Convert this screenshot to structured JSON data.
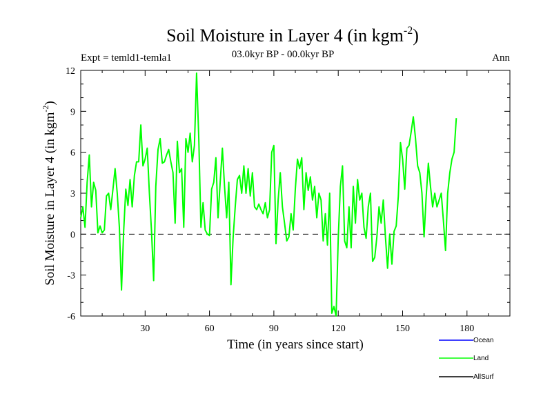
{
  "chart_data": {
    "type": "line",
    "title": "Soil Moisture in Layer 4 (in kgm",
    "title_sup": "-2",
    "title_close": ")",
    "subtitle": "03.0kyr BP - 00.0kyr BP",
    "expt_label": "Expt = temld1-temla1",
    "season_label": "Ann",
    "xlabel": "Time (in years since start)",
    "ylabel": "Soil Moisture in Layer 4 (in kgm",
    "ylabel_sup": "-2",
    "ylabel_close": ")",
    "xlim": [
      0,
      200
    ],
    "ylim": [
      -6,
      12
    ],
    "x_ticks": [
      30,
      60,
      90,
      120,
      150,
      180
    ],
    "x_tick_labels": [
      "30",
      "60",
      "90",
      "120",
      "150",
      "180"
    ],
    "y_ticks": [
      -6,
      -3,
      0,
      3,
      6,
      9,
      12
    ],
    "y_tick_labels": [
      "-6",
      "-3",
      "0",
      "3",
      "6",
      "9",
      "12"
    ],
    "zero_line": true,
    "grid": false,
    "legend_position": "bottom-right",
    "series": [
      {
        "name": "Ocean",
        "color": "#0000ff",
        "values": []
      },
      {
        "name": "Land",
        "color": "#00ff00",
        "values": [
          [
            0,
            1.2
          ],
          [
            1,
            2.0
          ],
          [
            2,
            0.5
          ],
          [
            3,
            3.8
          ],
          [
            4,
            5.8
          ],
          [
            5,
            2.0
          ],
          [
            6,
            3.8
          ],
          [
            7,
            3.2
          ],
          [
            8,
            0.1
          ],
          [
            9,
            0.6
          ],
          [
            10,
            0.1
          ],
          [
            11,
            0.3
          ],
          [
            12,
            2.8
          ],
          [
            13,
            3.0
          ],
          [
            14,
            1.8
          ],
          [
            15,
            3.3
          ],
          [
            16,
            4.8
          ],
          [
            17,
            3.0
          ],
          [
            18,
            0.5
          ],
          [
            19,
            -4.1
          ],
          [
            20,
            0.2
          ],
          [
            21,
            3.3
          ],
          [
            22,
            2.1
          ],
          [
            23,
            4.0
          ],
          [
            24,
            2.0
          ],
          [
            25,
            4.3
          ],
          [
            26,
            5.3
          ],
          [
            27,
            5.3
          ],
          [
            28,
            8.0
          ],
          [
            29,
            5.0
          ],
          [
            30,
            5.5
          ],
          [
            31,
            6.3
          ],
          [
            32,
            3.0
          ],
          [
            33,
            0.2
          ],
          [
            34,
            -3.4
          ],
          [
            35,
            3.5
          ],
          [
            36,
            6.2
          ],
          [
            37,
            7.0
          ],
          [
            38,
            5.2
          ],
          [
            39,
            5.3
          ],
          [
            40,
            5.8
          ],
          [
            41,
            6.2
          ],
          [
            42,
            5.3
          ],
          [
            43,
            4.5
          ],
          [
            44,
            0.8
          ],
          [
            45,
            6.8
          ],
          [
            46,
            4.5
          ],
          [
            47,
            4.8
          ],
          [
            48,
            0.5
          ],
          [
            49,
            7.0
          ],
          [
            50,
            6.0
          ],
          [
            51,
            7.4
          ],
          [
            52,
            5.3
          ],
          [
            53,
            6.5
          ],
          [
            54,
            11.8
          ],
          [
            55,
            7.0
          ],
          [
            56,
            0.5
          ],
          [
            57,
            2.3
          ],
          [
            58,
            0.3
          ],
          [
            59,
            0.0
          ],
          [
            60,
            -0.1
          ],
          [
            61,
            3.3
          ],
          [
            62,
            3.8
          ],
          [
            63,
            5.6
          ],
          [
            64,
            1.2
          ],
          [
            65,
            3.8
          ],
          [
            66,
            6.3
          ],
          [
            67,
            3.5
          ],
          [
            68,
            1.2
          ],
          [
            69,
            3.8
          ],
          [
            70,
            -3.7
          ],
          [
            71,
            -0.3
          ],
          [
            72,
            2.0
          ],
          [
            73,
            4.0
          ],
          [
            74,
            4.3
          ],
          [
            75,
            3.0
          ],
          [
            76,
            5.0
          ],
          [
            77,
            3.0
          ],
          [
            78,
            4.8
          ],
          [
            79,
            2.8
          ],
          [
            80,
            4.5
          ],
          [
            81,
            2.0
          ],
          [
            82,
            1.8
          ],
          [
            83,
            2.2
          ],
          [
            84,
            1.8
          ],
          [
            85,
            1.5
          ],
          [
            86,
            2.3
          ],
          [
            87,
            1.2
          ],
          [
            88,
            1.8
          ],
          [
            89,
            6.0
          ],
          [
            90,
            6.5
          ],
          [
            91,
            -0.7
          ],
          [
            92,
            2.5
          ],
          [
            93,
            4.5
          ],
          [
            94,
            2.0
          ],
          [
            95,
            0.8
          ],
          [
            96,
            -0.5
          ],
          [
            97,
            -0.2
          ],
          [
            98,
            1.5
          ],
          [
            99,
            0.3
          ],
          [
            100,
            3.3
          ],
          [
            101,
            5.5
          ],
          [
            102,
            4.8
          ],
          [
            103,
            5.6
          ],
          [
            104,
            1.8
          ],
          [
            105,
            4.5
          ],
          [
            106,
            3.2
          ],
          [
            107,
            4.2
          ],
          [
            108,
            2.5
          ],
          [
            109,
            3.5
          ],
          [
            110,
            1.2
          ],
          [
            111,
            3.0
          ],
          [
            112,
            2.5
          ],
          [
            113,
            -0.5
          ],
          [
            114,
            1.5
          ],
          [
            115,
            -0.8
          ],
          [
            116,
            3.0
          ],
          [
            117,
            -5.8
          ],
          [
            118,
            -5.3
          ],
          [
            119,
            -6.0
          ],
          [
            120,
            -0.3
          ],
          [
            121,
            3.5
          ],
          [
            122,
            5.0
          ],
          [
            123,
            -0.5
          ],
          [
            124,
            -1.0
          ],
          [
            125,
            2.0
          ],
          [
            126,
            -1.0
          ],
          [
            127,
            3.5
          ],
          [
            128,
            0.8
          ],
          [
            129,
            4.0
          ],
          [
            130,
            2.5
          ],
          [
            131,
            3.0
          ],
          [
            132,
            0.5
          ],
          [
            133,
            -0.3
          ],
          [
            134,
            2.0
          ],
          [
            135,
            3.0
          ],
          [
            136,
            -2.0
          ],
          [
            137,
            -1.7
          ],
          [
            138,
            -0.2
          ],
          [
            139,
            2.0
          ],
          [
            140,
            0.8
          ],
          [
            141,
            2.5
          ],
          [
            142,
            -0.2
          ],
          [
            143,
            -2.5
          ],
          [
            144,
            0.0
          ],
          [
            145,
            -2.2
          ],
          [
            146,
            0.2
          ],
          [
            147,
            0.6
          ],
          [
            148,
            2.8
          ],
          [
            149,
            6.7
          ],
          [
            150,
            5.5
          ],
          [
            151,
            3.3
          ],
          [
            152,
            6.3
          ],
          [
            153,
            6.5
          ],
          [
            154,
            7.5
          ],
          [
            155,
            8.6
          ],
          [
            156,
            7.0
          ],
          [
            157,
            5.0
          ],
          [
            158,
            4.5
          ],
          [
            159,
            3.0
          ],
          [
            160,
            -0.2
          ],
          [
            161,
            2.8
          ],
          [
            162,
            5.2
          ],
          [
            163,
            3.5
          ],
          [
            164,
            2.0
          ],
          [
            165,
            3.0
          ],
          [
            166,
            2.0
          ],
          [
            167,
            2.5
          ],
          [
            168,
            3.0
          ],
          [
            169,
            1.0
          ],
          [
            170,
            -1.2
          ],
          [
            171,
            3.0
          ],
          [
            172,
            4.5
          ],
          [
            173,
            5.5
          ],
          [
            174,
            6.0
          ],
          [
            175,
            8.5
          ]
        ]
      },
      {
        "name": "AllSurf",
        "color": "#000000",
        "values": []
      }
    ]
  }
}
